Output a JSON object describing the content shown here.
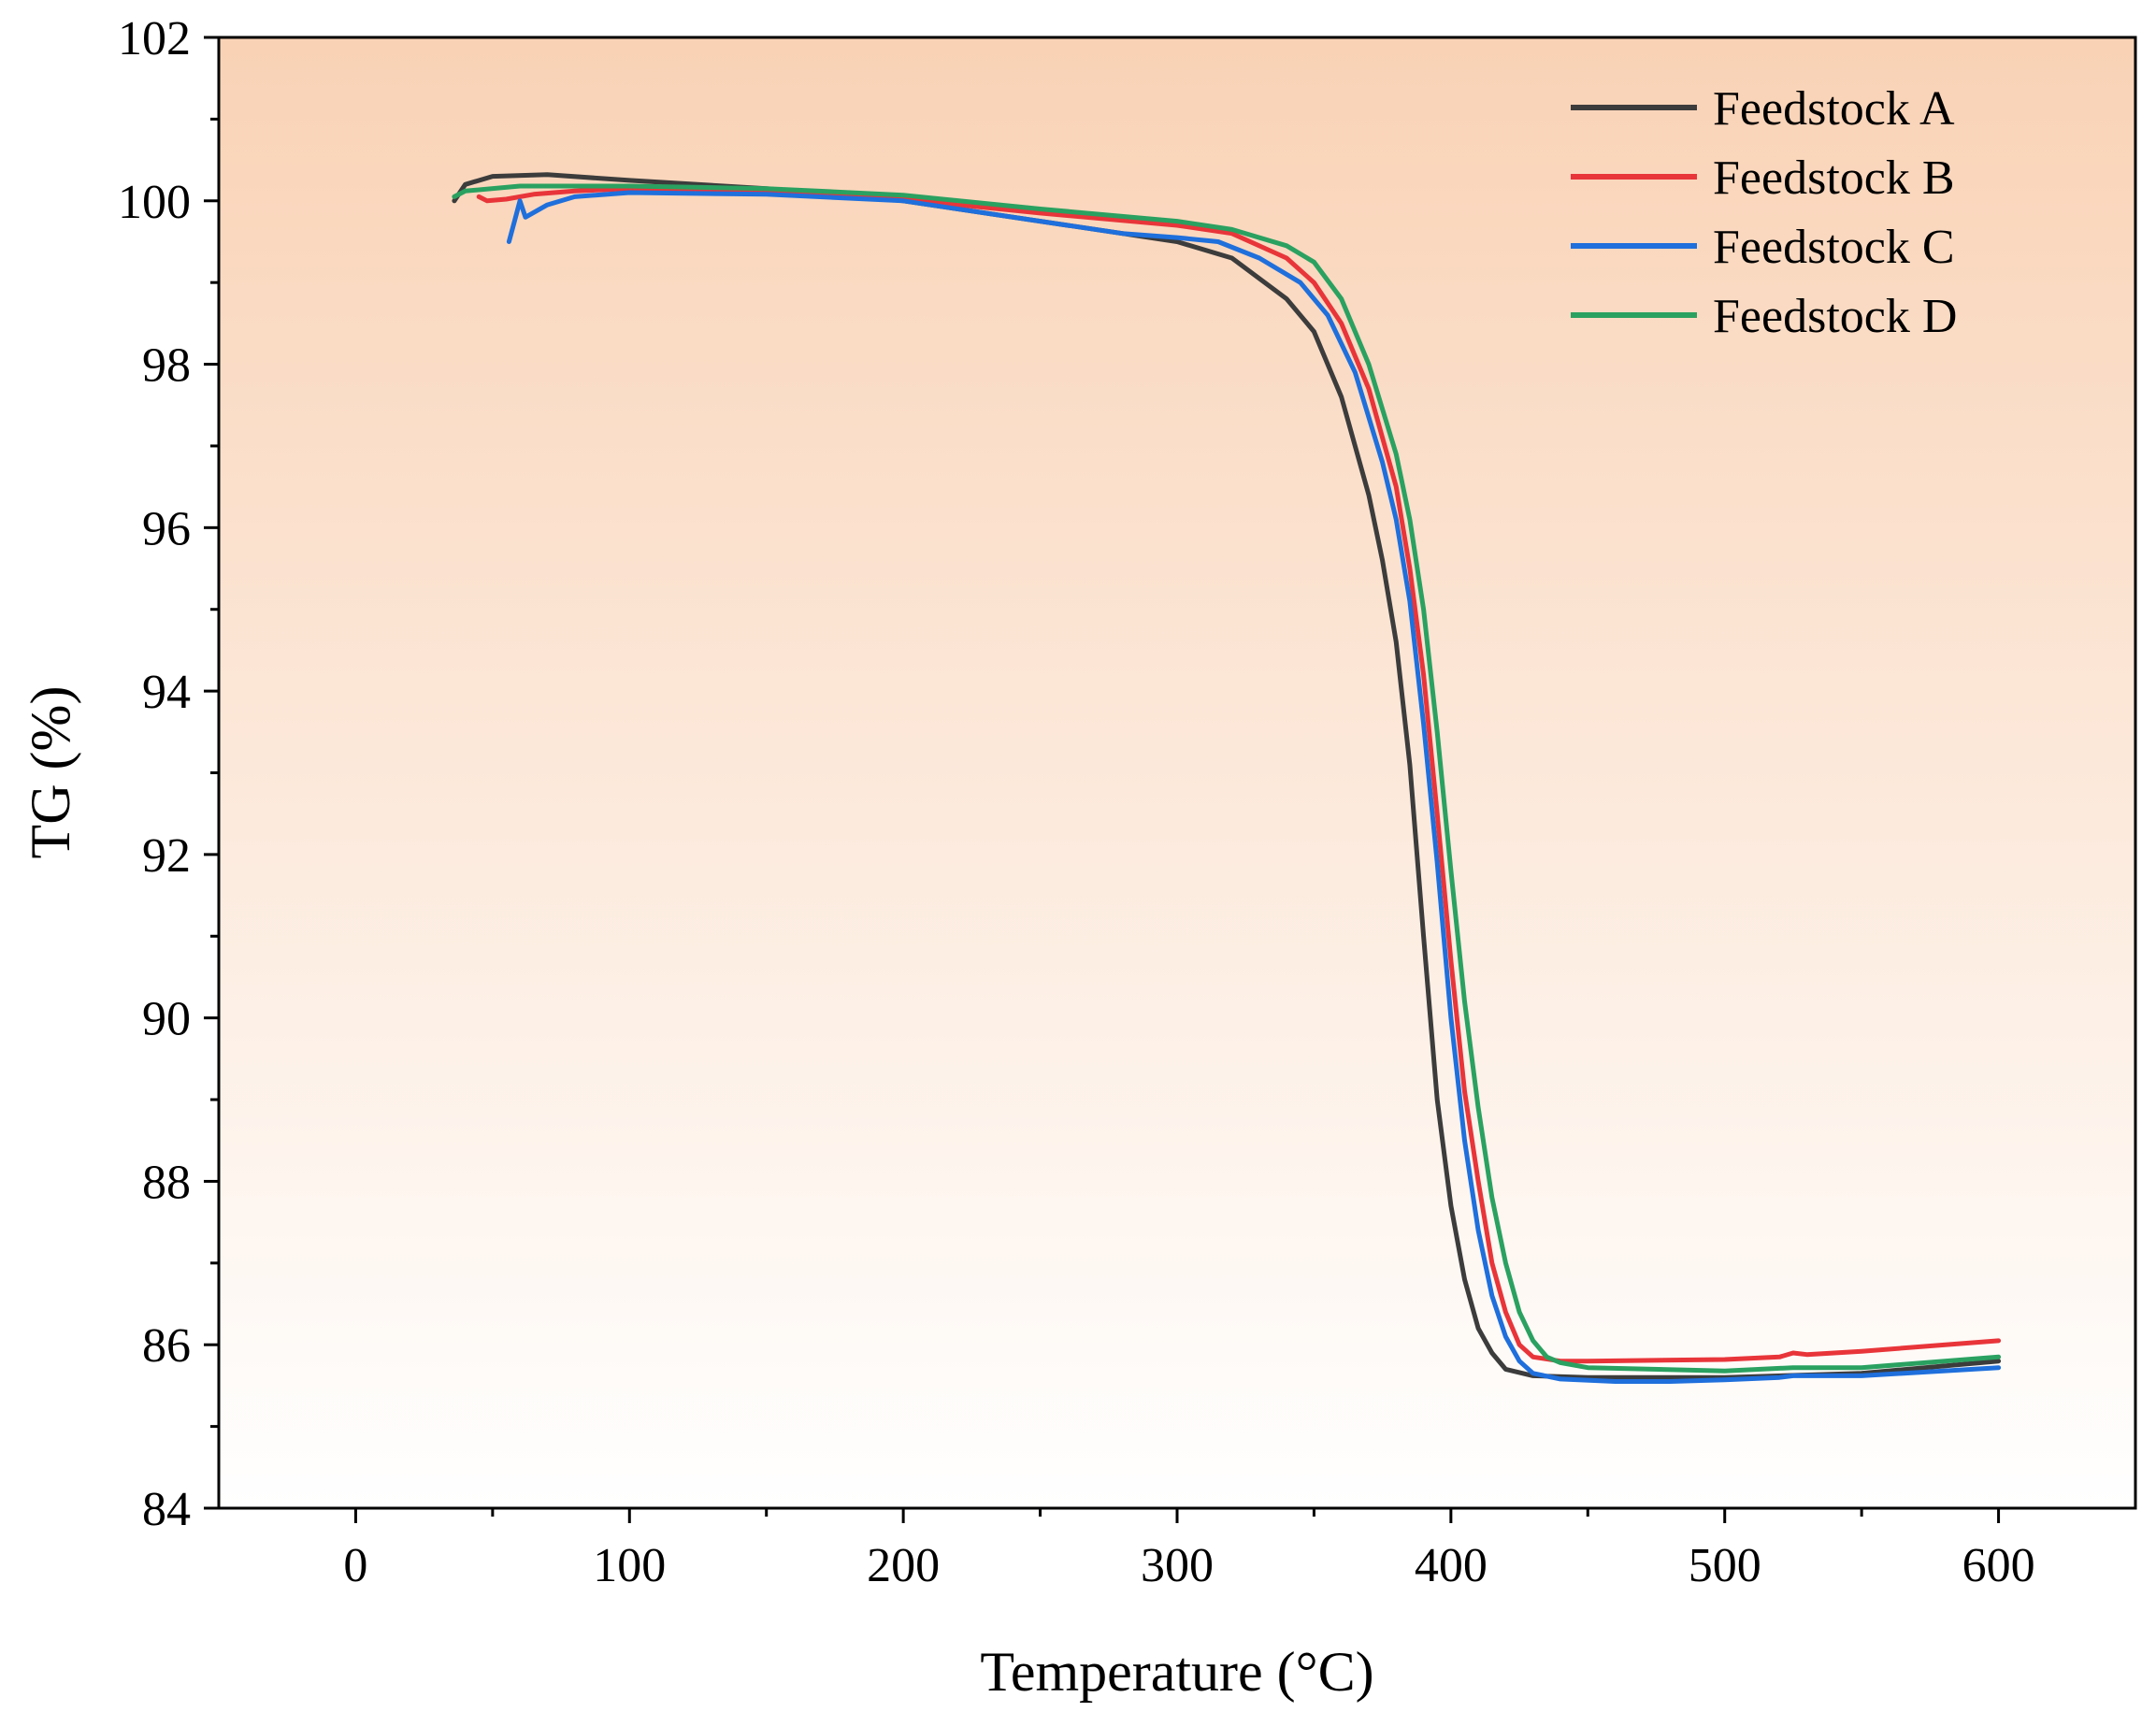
{
  "chart_data": {
    "type": "line",
    "title": "",
    "xlabel": "Temperature (°C)",
    "ylabel": "TG (%)",
    "xlim": [
      -50,
      650
    ],
    "ylim": [
      84,
      102
    ],
    "xticks": [
      0,
      100,
      200,
      300,
      400,
      500,
      600
    ],
    "yticks": [
      84,
      86,
      88,
      90,
      92,
      94,
      96,
      98,
      100,
      102
    ],
    "legend_position": "top-right",
    "background_gradient": [
      "#f9d2b5",
      "#ffffff"
    ],
    "series": [
      {
        "name": "Feedstock A",
        "color": "#3c3c3c",
        "points": [
          [
            36,
            100.0
          ],
          [
            40,
            100.2
          ],
          [
            50,
            100.3
          ],
          [
            70,
            100.32
          ],
          [
            100,
            100.25
          ],
          [
            150,
            100.15
          ],
          [
            200,
            100.0
          ],
          [
            250,
            99.75
          ],
          [
            280,
            99.6
          ],
          [
            300,
            99.5
          ],
          [
            320,
            99.3
          ],
          [
            340,
            98.8
          ],
          [
            350,
            98.4
          ],
          [
            360,
            97.6
          ],
          [
            370,
            96.4
          ],
          [
            375,
            95.6
          ],
          [
            380,
            94.6
          ],
          [
            385,
            93.1
          ],
          [
            390,
            91.0
          ],
          [
            395,
            89.0
          ],
          [
            400,
            87.7
          ],
          [
            405,
            86.8
          ],
          [
            410,
            86.2
          ],
          [
            415,
            85.9
          ],
          [
            420,
            85.7
          ],
          [
            430,
            85.62
          ],
          [
            450,
            85.6
          ],
          [
            500,
            85.6
          ],
          [
            550,
            85.65
          ],
          [
            600,
            85.8
          ]
        ]
      },
      {
        "name": "Feedstock B",
        "color": "#e8353a",
        "points": [
          [
            45,
            100.05
          ],
          [
            48,
            100.0
          ],
          [
            55,
            100.02
          ],
          [
            65,
            100.08
          ],
          [
            80,
            100.12
          ],
          [
            100,
            100.15
          ],
          [
            150,
            100.12
          ],
          [
            200,
            100.02
          ],
          [
            250,
            99.85
          ],
          [
            300,
            99.7
          ],
          [
            320,
            99.6
          ],
          [
            340,
            99.3
          ],
          [
            350,
            99.0
          ],
          [
            360,
            98.5
          ],
          [
            370,
            97.7
          ],
          [
            380,
            96.5
          ],
          [
            385,
            95.5
          ],
          [
            390,
            94.2
          ],
          [
            395,
            92.5
          ],
          [
            400,
            90.7
          ],
          [
            405,
            89.1
          ],
          [
            410,
            88.0
          ],
          [
            415,
            87.0
          ],
          [
            420,
            86.4
          ],
          [
            425,
            86.0
          ],
          [
            430,
            85.85
          ],
          [
            440,
            85.8
          ],
          [
            450,
            85.8
          ],
          [
            500,
            85.82
          ],
          [
            520,
            85.85
          ],
          [
            525,
            85.9
          ],
          [
            530,
            85.88
          ],
          [
            550,
            85.92
          ],
          [
            600,
            86.05
          ]
        ]
      },
      {
        "name": "Feedstock C",
        "color": "#1f6fdc",
        "points": [
          [
            56,
            99.5
          ],
          [
            58,
            99.75
          ],
          [
            60,
            100.0
          ],
          [
            62,
            99.8
          ],
          [
            70,
            99.95
          ],
          [
            80,
            100.05
          ],
          [
            100,
            100.1
          ],
          [
            150,
            100.08
          ],
          [
            200,
            100.0
          ],
          [
            230,
            99.85
          ],
          [
            250,
            99.75
          ],
          [
            280,
            99.6
          ],
          [
            300,
            99.55
          ],
          [
            315,
            99.5
          ],
          [
            330,
            99.3
          ],
          [
            345,
            99.0
          ],
          [
            355,
            98.6
          ],
          [
            365,
            97.9
          ],
          [
            375,
            96.8
          ],
          [
            380,
            96.1
          ],
          [
            385,
            95.1
          ],
          [
            390,
            93.6
          ],
          [
            395,
            91.9
          ],
          [
            400,
            90.0
          ],
          [
            405,
            88.5
          ],
          [
            410,
            87.4
          ],
          [
            415,
            86.6
          ],
          [
            420,
            86.1
          ],
          [
            425,
            85.8
          ],
          [
            430,
            85.65
          ],
          [
            440,
            85.58
          ],
          [
            460,
            85.55
          ],
          [
            480,
            85.55
          ],
          [
            500,
            85.57
          ],
          [
            520,
            85.6
          ],
          [
            525,
            85.62
          ],
          [
            550,
            85.62
          ],
          [
            600,
            85.72
          ]
        ]
      },
      {
        "name": "Feedstock D",
        "color": "#2aa160",
        "points": [
          [
            36,
            100.05
          ],
          [
            40,
            100.12
          ],
          [
            60,
            100.18
          ],
          [
            100,
            100.18
          ],
          [
            150,
            100.15
          ],
          [
            200,
            100.07
          ],
          [
            250,
            99.9
          ],
          [
            300,
            99.75
          ],
          [
            320,
            99.65
          ],
          [
            340,
            99.45
          ],
          [
            350,
            99.25
          ],
          [
            360,
            98.8
          ],
          [
            370,
            98.0
          ],
          [
            380,
            96.9
          ],
          [
            385,
            96.1
          ],
          [
            390,
            95.0
          ],
          [
            395,
            93.5
          ],
          [
            400,
            91.8
          ],
          [
            405,
            90.2
          ],
          [
            410,
            88.9
          ],
          [
            415,
            87.8
          ],
          [
            420,
            87.0
          ],
          [
            425,
            86.4
          ],
          [
            430,
            86.05
          ],
          [
            435,
            85.85
          ],
          [
            440,
            85.78
          ],
          [
            450,
            85.72
          ],
          [
            500,
            85.68
          ],
          [
            525,
            85.72
          ],
          [
            550,
            85.72
          ],
          [
            600,
            85.85
          ]
        ]
      }
    ]
  }
}
